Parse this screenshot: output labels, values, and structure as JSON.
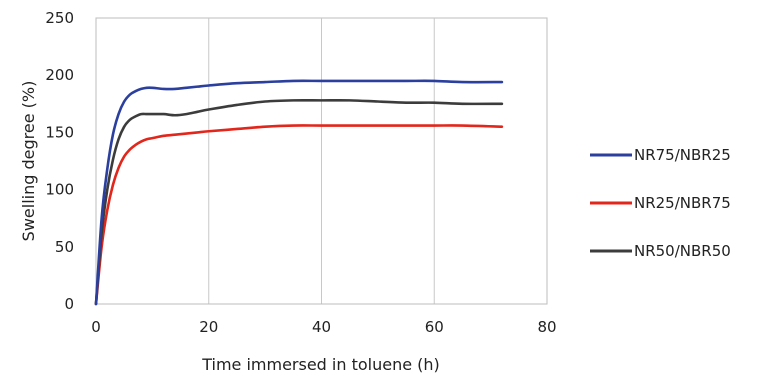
{
  "chart_data": {
    "type": "line",
    "title": "",
    "xlabel": "Time immersed in toluene (h)",
    "ylabel": "Swelling degree (%)",
    "xlim": [
      0,
      80
    ],
    "ylim": [
      0,
      250
    ],
    "xticks": [
      0,
      20,
      40,
      60,
      80
    ],
    "yticks": [
      0,
      50,
      100,
      150,
      200,
      250
    ],
    "grid": "vertical",
    "legend_position": "right",
    "series": [
      {
        "name": "NR75/NBR25",
        "color": "#2b3f9e",
        "x": [
          0,
          1,
          2,
          3,
          4,
          5,
          6,
          7,
          8,
          9,
          10,
          12,
          14,
          16,
          18,
          20,
          25,
          30,
          35,
          40,
          45,
          50,
          55,
          60,
          65,
          72
        ],
        "y": [
          0,
          75,
          118,
          148,
          166,
          177,
          183,
          186,
          188,
          189,
          189,
          188,
          188,
          189,
          190,
          191,
          193,
          194,
          195,
          195,
          195,
          195,
          195,
          195,
          194,
          194
        ]
      },
      {
        "name": "NR25/NBR75",
        "color": "#e2261b",
        "x": [
          0,
          1,
          2,
          3,
          4,
          5,
          6,
          7,
          8,
          9,
          10,
          12,
          14,
          16,
          18,
          20,
          25,
          30,
          35,
          40,
          45,
          50,
          55,
          60,
          65,
          72
        ],
        "y": [
          0,
          50,
          82,
          104,
          119,
          129,
          135,
          139,
          142,
          144,
          145,
          147,
          148,
          149,
          150,
          151,
          153,
          155,
          156,
          156,
          156,
          156,
          156,
          156,
          156,
          155
        ]
      },
      {
        "name": "NR50/NBR50",
        "color": "#3c3c3c",
        "x": [
          0,
          1,
          2,
          3,
          4,
          5,
          6,
          7,
          8,
          9,
          10,
          12,
          14,
          16,
          18,
          20,
          25,
          30,
          35,
          40,
          45,
          50,
          55,
          60,
          65,
          72
        ],
        "y": [
          0,
          62,
          100,
          126,
          144,
          155,
          161,
          164,
          166,
          166,
          166,
          166,
          165,
          166,
          168,
          170,
          174,
          177,
          178,
          178,
          178,
          177,
          176,
          176,
          175,
          175
        ]
      }
    ]
  }
}
